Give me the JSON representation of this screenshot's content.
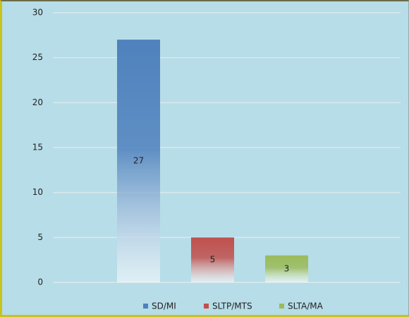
{
  "chart_data": {
    "type": "bar",
    "categories": [
      null
    ],
    "series": [
      {
        "name": "SD/MI",
        "color": "#4f81bd",
        "values": [
          27
        ]
      },
      {
        "name": "SLTP/MTS",
        "color": "#c0504d",
        "values": [
          5
        ]
      },
      {
        "name": "SLTA/MA",
        "color": "#9bbb59",
        "values": [
          3
        ]
      }
    ],
    "ylim": [
      0,
      30
    ],
    "yticks": [
      0,
      5,
      10,
      15,
      20,
      25,
      30
    ],
    "grid": true,
    "legend": "bottom"
  }
}
